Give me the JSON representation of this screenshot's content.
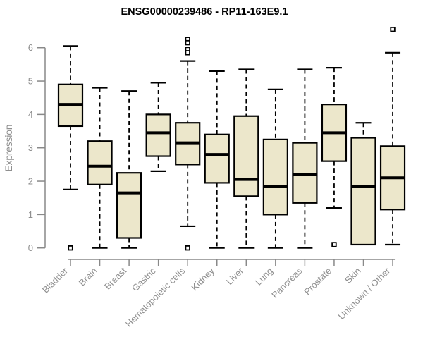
{
  "figure": {
    "title": "ENSG00000239486 - RP11-163E9.1"
  },
  "colors": {
    "background": "#ffffff",
    "box_fill": "#ece7cb",
    "box_stroke": "#000000",
    "median": "#000000",
    "whisker": "#000000",
    "outlier_stroke": "#000000",
    "outlier_fill": "#ffffff",
    "axis": "#898989",
    "tick_text": "#8f8f8f",
    "title_text": "#000000"
  },
  "chart_data": {
    "type": "box",
    "title": "ENSG00000239486 - RP11-163E9.1",
    "xlabel": "",
    "ylabel": "Expression",
    "ylim": [
      0,
      6.6
    ],
    "yticks": [
      0,
      1,
      2,
      3,
      4,
      5,
      6
    ],
    "grid": false,
    "legend_position": "none",
    "x_label_rotation_deg": 45,
    "categories": [
      "Bladder",
      "Brain",
      "Breast",
      "Gastric",
      "Hematopoietic cells",
      "Kidney",
      "Liver",
      "Lung",
      "Pancreas",
      "Prostate",
      "Skin",
      "Unknown / Other"
    ],
    "boxes": [
      {
        "label": "Bladder",
        "min": 1.75,
        "q1": 3.65,
        "median": 4.3,
        "q3": 4.9,
        "max": 6.05,
        "outliers": [
          0
        ]
      },
      {
        "label": "Brain",
        "min": 0.0,
        "q1": 1.9,
        "median": 2.45,
        "q3": 3.2,
        "max": 4.8,
        "outliers": []
      },
      {
        "label": "Breast",
        "min": 0.0,
        "q1": 0.3,
        "median": 1.65,
        "q3": 2.25,
        "max": 4.7,
        "outliers": []
      },
      {
        "label": "Gastric",
        "min": 2.3,
        "q1": 2.75,
        "median": 3.45,
        "q3": 4.0,
        "max": 4.95,
        "outliers": []
      },
      {
        "label": "Hematopoietic cells",
        "min": 0.65,
        "q1": 2.5,
        "median": 3.15,
        "q3": 3.75,
        "max": 5.6,
        "outliers": [
          6.25,
          6.15,
          5.95,
          5.85,
          0
        ]
      },
      {
        "label": "Kidney",
        "min": 0.0,
        "q1": 1.95,
        "median": 2.8,
        "q3": 3.4,
        "max": 5.3,
        "outliers": []
      },
      {
        "label": "Liver",
        "min": 0.0,
        "q1": 1.55,
        "median": 2.05,
        "q3": 3.95,
        "max": 5.35,
        "outliers": []
      },
      {
        "label": "Lung",
        "min": 0.0,
        "q1": 1.0,
        "median": 1.85,
        "q3": 3.25,
        "max": 4.75,
        "outliers": []
      },
      {
        "label": "Pancreas",
        "min": 0.0,
        "q1": 1.35,
        "median": 2.2,
        "q3": 3.15,
        "max": 5.35,
        "outliers": []
      },
      {
        "label": "Prostate",
        "min": 1.2,
        "q1": 2.6,
        "median": 3.45,
        "q3": 4.3,
        "max": 5.4,
        "outliers": [
          0.1
        ]
      },
      {
        "label": "Skin",
        "min": 0.1,
        "q1": 0.1,
        "median": 1.85,
        "q3": 3.3,
        "max": 3.75,
        "outliers": []
      },
      {
        "label": "Unknown / Other",
        "min": 0.1,
        "q1": 1.15,
        "median": 2.1,
        "q3": 3.05,
        "max": 5.85,
        "outliers": [
          6.55
        ]
      }
    ]
  }
}
